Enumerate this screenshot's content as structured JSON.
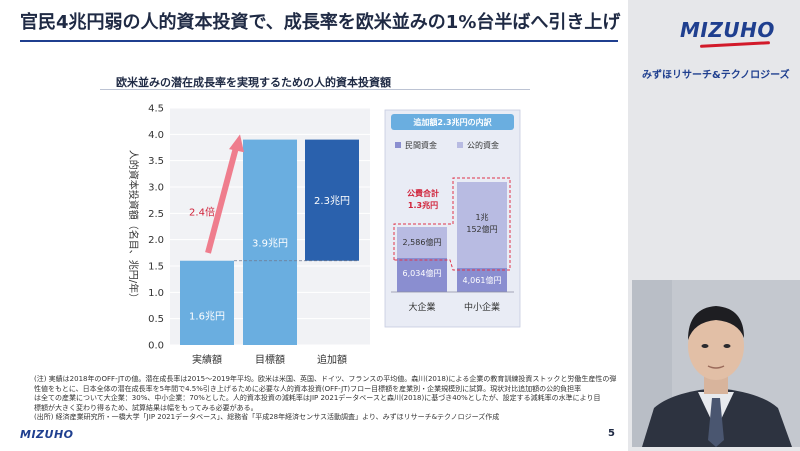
{
  "slide": {
    "title": "官民4兆円弱の人的資本投資で、成長率を欧米並みの1%台半ばへ引き上げ",
    "chart_title": "欧米並みの潜在成長率を実現するための人的資本投資額",
    "page_number": "5",
    "footer_logo": "MIZUHO"
  },
  "brand": {
    "logo": "MIZUHO",
    "subtitle": "みずほリサーチ&テクノロジーズ"
  },
  "chart_data": {
    "type": "bar",
    "ylabel": "人的資本投資額（名目、兆円/年）",
    "ylim": [
      0,
      4.5
    ],
    "yticks": [
      "0.0",
      "0.5",
      "1.0",
      "1.5",
      "2.0",
      "2.5",
      "3.0",
      "3.5",
      "4.0",
      "4.5"
    ],
    "categories": [
      "実績額",
      "目標額",
      "追加額"
    ],
    "values": [
      1.6,
      3.9,
      2.3
    ],
    "bar_labels": [
      "1.6兆円",
      "3.9兆円",
      "2.3兆円"
    ],
    "waterfall_base": [
      0,
      0,
      1.6
    ],
    "colors": [
      "#6aaee0",
      "#6aaee0",
      "#2a61ad"
    ],
    "arrow_label": "2.4倍",
    "arrow_color": "#ef7d8d"
  },
  "breakdown": {
    "title": "追加額2.3兆円の内訳",
    "legend": [
      {
        "label": "民間資金",
        "color": "#8a8ed0"
      },
      {
        "label": "公的資金",
        "color": "#b8bbe2"
      }
    ],
    "public_total_label": "公費合計",
    "public_total_value": "1.3兆円",
    "categories": [
      "大企業",
      "中小企業"
    ],
    "large": {
      "private": "6,034億円",
      "public": "2,586億円"
    },
    "sme": {
      "private": "4,061億円",
      "public_line1": "1兆",
      "public_line2": "152億円"
    }
  },
  "notes": [
    "(注) 実績は2018年のOFF-JTの値。潜在成長率は2015～2019年平均。欧米は米国、英国、ドイツ、フランスの平均値。森川(2018)による企業の教育訓練投資ストックと労働生産性の弾",
    "性値をもとに、日本全体の潜在成長率を5年間で4.5%引き上げるために必要な人的資本投資(OFF-JT)フロー目標額を産業別・企業規模別に試算。現状対比追加額の公的負担率",
    "は全ての産業について大企業：30%、中小企業：70%とした。人的資本投資の減耗率はJIP 2021データベースと森川(2018)に基づき40%としたが、設定する減耗率の水準により目",
    "標額が大きく変わり得るため、試算結果は幅をもってみる必要がある。",
    "(出所) 経済産業研究所・一橋大学「JIP 2021データベース」、総務省「平成28年経済センサス活動調査」より、みずほリサーチ&テクノロジーズ作成"
  ]
}
